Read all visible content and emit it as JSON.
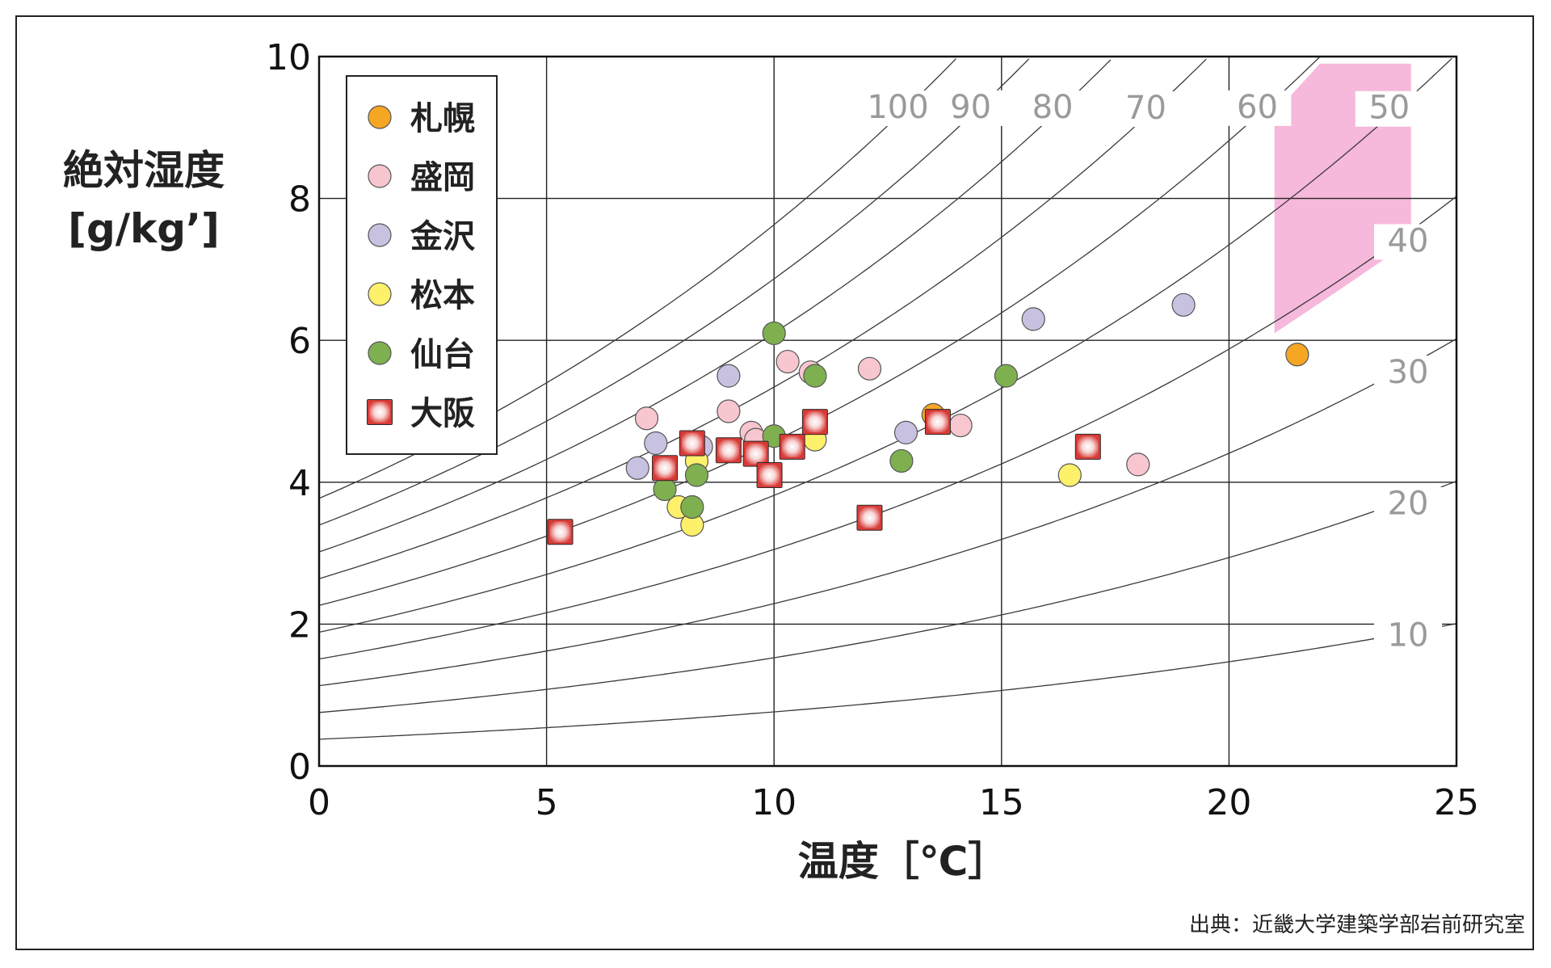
{
  "chart_data": {
    "type": "scatter",
    "xlabel": "温度［℃］",
    "ylabel": [
      "絶対湿度",
      "[g/kg’]"
    ],
    "xlim": [
      0,
      25
    ],
    "ylim": [
      0,
      10
    ],
    "x_ticks": [
      0,
      5,
      10,
      15,
      20,
      25
    ],
    "y_ticks": [
      0,
      2,
      4,
      6,
      8,
      10
    ],
    "grid": true,
    "legend_position": "top-left",
    "source": "出典：近畿大学建築学部岩前研究室",
    "comfort_zone": {
      "color": "#f6b8db",
      "polygon": [
        [
          21.0,
          9.2
        ],
        [
          22.0,
          9.9
        ],
        [
          24.0,
          9.9
        ],
        [
          24.0,
          7.4
        ],
        [
          22.4,
          6.7
        ],
        [
          21.0,
          6.1
        ]
      ]
    },
    "rh_curves": [
      {
        "label": "100",
        "rh": 100
      },
      {
        "label": "90",
        "rh": 90
      },
      {
        "label": "80",
        "rh": 80
      },
      {
        "label": "70",
        "rh": 70
      },
      {
        "label": "60",
        "rh": 60
      },
      {
        "label": "50",
        "rh": 50
      },
      {
        "label": "40",
        "rh": 40
      },
      {
        "label": "30",
        "rh": 30
      },
      {
        "label": "20",
        "rh": 20
      },
      {
        "label": "10",
        "rh": 10
      }
    ],
    "series": [
      {
        "name": "札幌",
        "color": "#f5a623",
        "marker": "circle",
        "points": [
          [
            13.5,
            4.95
          ],
          [
            21.5,
            5.8
          ]
        ]
      },
      {
        "name": "盛岡",
        "color": "#f7c6cf",
        "marker": "circle",
        "points": [
          [
            7.2,
            4.9
          ],
          [
            9.0,
            5.0
          ],
          [
            9.5,
            4.7
          ],
          [
            10.3,
            5.7
          ],
          [
            10.8,
            5.55
          ],
          [
            12.1,
            5.6
          ],
          [
            14.1,
            4.8
          ],
          [
            18.0,
            4.25
          ],
          [
            9.6,
            4.6
          ]
        ]
      },
      {
        "name": "金沢",
        "color": "#c9c1e0",
        "marker": "circle",
        "points": [
          [
            7.0,
            4.2
          ],
          [
            7.4,
            4.55
          ],
          [
            9.0,
            5.5
          ],
          [
            12.9,
            4.7
          ],
          [
            15.7,
            6.3
          ],
          [
            19.0,
            6.5
          ],
          [
            8.4,
            4.5
          ]
        ]
      },
      {
        "name": "松本",
        "color": "#fdf06a",
        "marker": "circle",
        "points": [
          [
            7.9,
            3.65
          ],
          [
            8.2,
            3.4
          ],
          [
            8.3,
            4.3
          ],
          [
            10.9,
            4.6
          ],
          [
            16.5,
            4.1
          ]
        ]
      },
      {
        "name": "仙台",
        "color": "#7fb050",
        "marker": "circle",
        "points": [
          [
            7.6,
            3.9
          ],
          [
            8.2,
            3.65
          ],
          [
            8.3,
            4.1
          ],
          [
            10.0,
            4.65
          ],
          [
            10.0,
            6.1
          ],
          [
            10.9,
            5.5
          ],
          [
            12.8,
            4.3
          ],
          [
            15.1,
            5.5
          ]
        ]
      },
      {
        "name": "大阪",
        "color": "#d83a36",
        "marker": "square",
        "points": [
          [
            5.3,
            3.3
          ],
          [
            7.6,
            4.2
          ],
          [
            8.2,
            4.55
          ],
          [
            9.0,
            4.45
          ],
          [
            9.6,
            4.4
          ],
          [
            9.9,
            4.1
          ],
          [
            10.4,
            4.5
          ],
          [
            10.9,
            4.85
          ],
          [
            12.1,
            3.5
          ],
          [
            13.6,
            4.85
          ],
          [
            16.9,
            4.5
          ]
        ]
      }
    ]
  }
}
